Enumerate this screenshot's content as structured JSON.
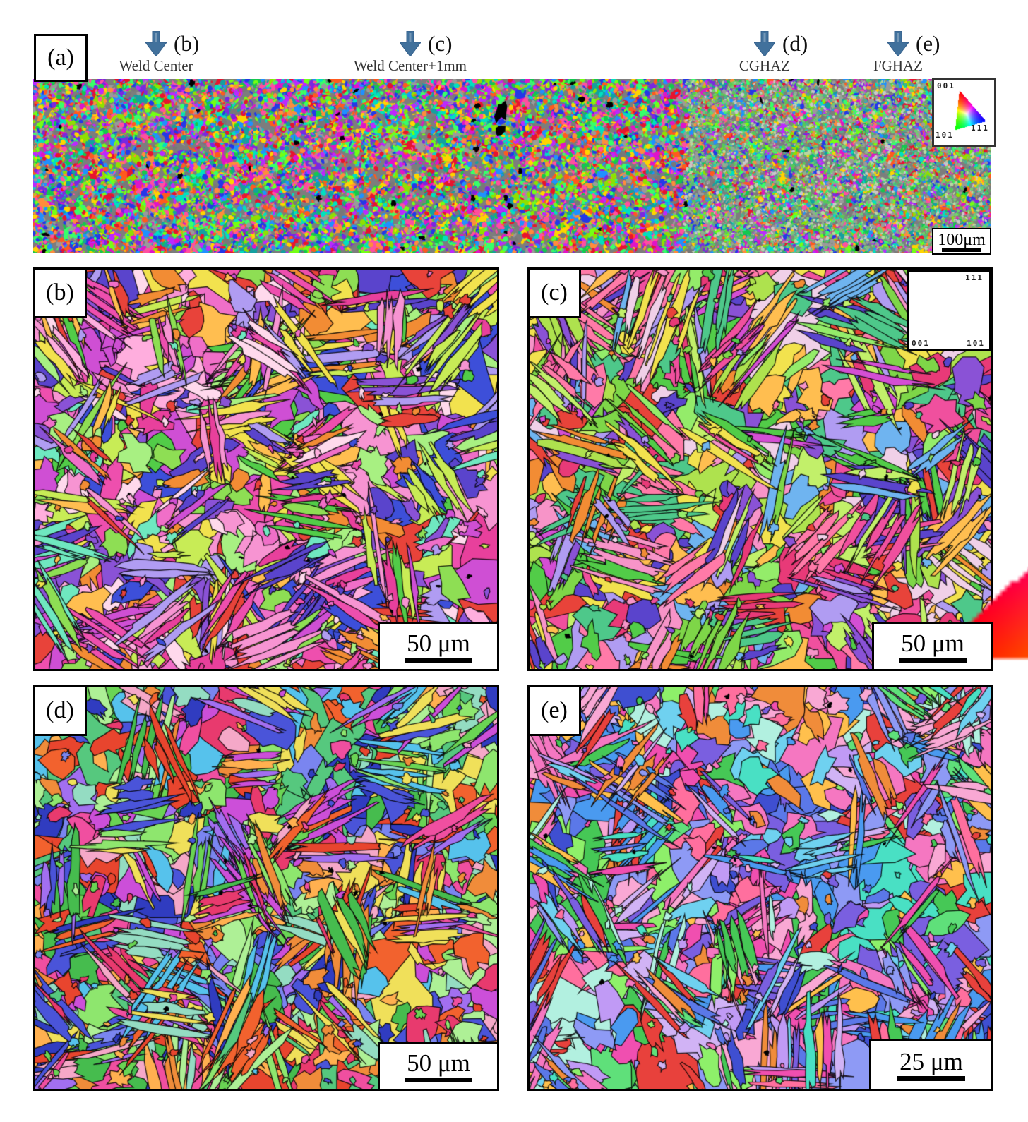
{
  "figure": {
    "panels": {
      "a": {
        "label": "(a)",
        "scale_bar": "100μm",
        "ipf_key": {
          "c001": "001",
          "c101": "101",
          "c111": "111"
        },
        "markers": [
          {
            "label": "(b)",
            "caption": "Weld Center"
          },
          {
            "label": "(c)",
            "caption": "Weld Center+1mm"
          },
          {
            "label": "(d)",
            "caption": "CGHAZ"
          },
          {
            "label": "(e)",
            "caption": "FGHAZ"
          }
        ]
      },
      "b": {
        "label": "(b)",
        "scale_bar": "50 μm"
      },
      "c": {
        "label": "(c)",
        "scale_bar": "50 μm",
        "ipf_key": {
          "c001": "001",
          "c101": "101",
          "c111": "111"
        }
      },
      "d": {
        "label": "(d)",
        "scale_bar": "50 μm"
      },
      "e": {
        "label": "(e)",
        "scale_bar": "25 μm"
      }
    },
    "colors": {
      "arrow": "#41719c",
      "arrow_edge": "#35608c",
      "border": "#000000",
      "ipf_001": "#ff0000",
      "ipf_101": "#00ff00",
      "ipf_111": "#0000ff"
    },
    "palettes": {
      "a": [
        "#e8142e",
        "#ff5a1e",
        "#ffd400",
        "#8fe000",
        "#14c84e",
        "#00e0c0",
        "#2090ff",
        "#2438e8",
        "#7a28e0",
        "#e014c8",
        "#ff4fa0",
        "#38ff6a",
        "#74ff14",
        "#9a9a9a",
        "#787878",
        "#bc28ff",
        "#ff8c3c",
        "#14a0a0"
      ],
      "b": [
        "#ee4fae",
        "#f06fc8",
        "#f794d2",
        "#e8409c",
        "#cf4fd4",
        "#ffaede",
        "#8a52d6",
        "#5a44cc",
        "#3d4fd9",
        "#f2e24e",
        "#c8ec56",
        "#8ede54",
        "#52cc48",
        "#a8f082",
        "#ffbe50",
        "#f28c34",
        "#e8433a",
        "#b09cf2",
        "#ffd9ec",
        "#6fe8c0"
      ],
      "c": [
        "#f0509e",
        "#e83a78",
        "#f794c8",
        "#d44fd4",
        "#8a52d6",
        "#5a44cc",
        "#f2e24e",
        "#aee24e",
        "#7ed648",
        "#52cc48",
        "#94ec6a",
        "#e8433a",
        "#f28c34",
        "#ffbe50",
        "#6fb4f0",
        "#b09cf2",
        "#ff7aa8",
        "#c2f06a",
        "#4ec88a",
        "#f0d0e8"
      ],
      "d": [
        "#6ad454",
        "#8ee66e",
        "#46bc4e",
        "#aef096",
        "#56c87e",
        "#f2622e",
        "#e8452e",
        "#f08c3a",
        "#ffb050",
        "#4a54d9",
        "#303cc0",
        "#7a85f0",
        "#56c2ec",
        "#f04fa0",
        "#e83a6e",
        "#cc4fd9",
        "#f0e05a",
        "#94dcc2",
        "#a26ff0",
        "#f5a8c8"
      ],
      "e": [
        "#5b78e8",
        "#7a5fe0",
        "#8e9af5",
        "#4a9af0",
        "#6fd1f0",
        "#49e0c4",
        "#5fe07a",
        "#8ef06a",
        "#46c856",
        "#f04fb0",
        "#f577c1",
        "#e8413c",
        "#f08c3a",
        "#c09af5",
        "#ffc04d",
        "#f9a8d4",
        "#3f4fd1",
        "#b2f0e0",
        "#d1b3f5",
        "#ff6f9e"
      ]
    }
  }
}
